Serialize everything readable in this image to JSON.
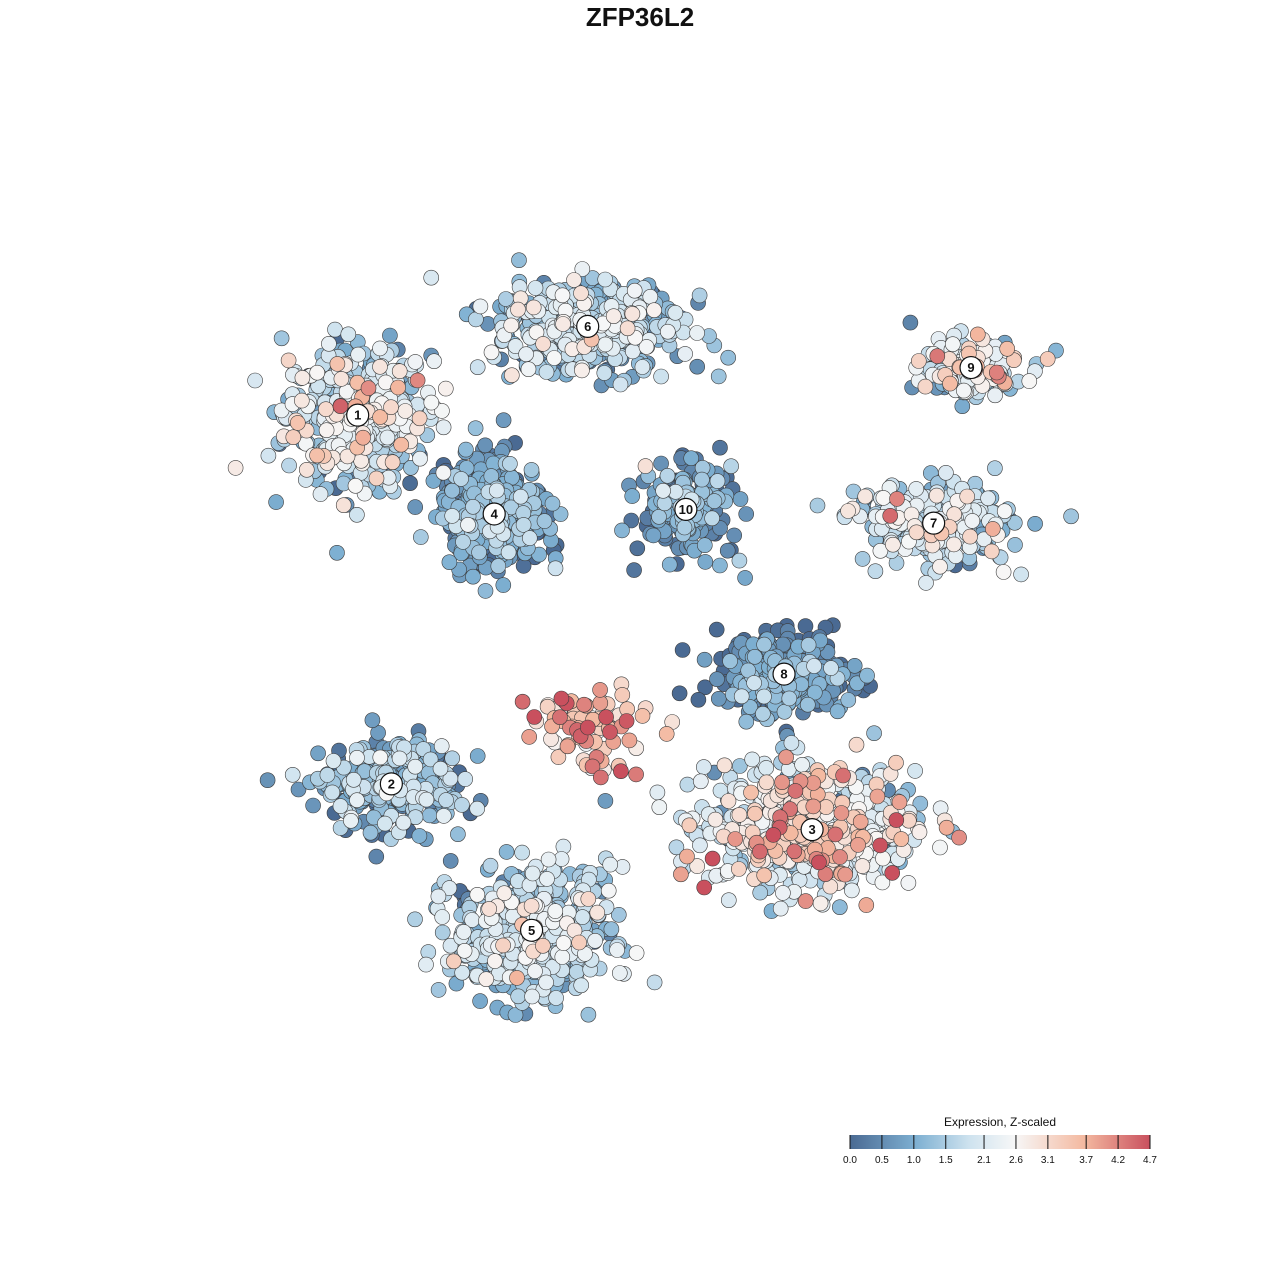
{
  "chart_data": {
    "type": "scatter",
    "title": "ZFP36L2",
    "xlabel": "",
    "ylabel": "",
    "xlim": [
      0,
      100
    ],
    "ylim": [
      0,
      100
    ],
    "grid": false,
    "legend": {
      "title": "Expression, Z-scaled",
      "placement": "bottom-right",
      "ticks": [
        "0.0",
        "0.5",
        "1.0",
        "1.5",
        "2.1",
        "2.6",
        "3.1",
        "3.7",
        "4.2",
        "4.7"
      ],
      "range": [
        0.0,
        4.7
      ]
    },
    "colorscale": [
      "#4a6a93",
      "#7eb0d2",
      "#cfe3ef",
      "#f7f7f7",
      "#f4b9a0",
      "#c9505e"
    ],
    "clusters": [
      {
        "label": "1",
        "x": 17.4,
        "y": 74.3,
        "sx": 7.0,
        "sy": 6.8,
        "n": 520,
        "mean": 1.7,
        "spread": 0.9
      },
      {
        "label": "2",
        "x": 21.0,
        "y": 34.0,
        "sx": 6.4,
        "sy": 4.6,
        "n": 320,
        "mean": 0.9,
        "spread": 0.7
      },
      {
        "label": "3",
        "x": 66.0,
        "y": 29.0,
        "sx": 10.0,
        "sy": 5.8,
        "n": 640,
        "mean": 2.3,
        "spread": 1.0
      },
      {
        "label": "4",
        "x": 32.0,
        "y": 63.5,
        "sx": 5.0,
        "sy": 5.2,
        "n": 470,
        "mean": 0.6,
        "spread": 0.6
      },
      {
        "label": "5",
        "x": 36.0,
        "y": 18.0,
        "sx": 7.5,
        "sy": 6.0,
        "n": 560,
        "mean": 1.4,
        "spread": 0.8
      },
      {
        "label": "6",
        "x": 42.0,
        "y": 84.0,
        "sx": 9.0,
        "sy": 4.6,
        "n": 480,
        "mean": 1.4,
        "spread": 0.8
      },
      {
        "label": "7",
        "x": 79.0,
        "y": 62.5,
        "sx": 7.5,
        "sy": 4.0,
        "n": 300,
        "mean": 1.6,
        "spread": 0.8
      },
      {
        "label": "8",
        "x": 63.0,
        "y": 46.0,
        "sx": 6.5,
        "sy": 4.0,
        "n": 320,
        "mean": 0.4,
        "spread": 0.6
      },
      {
        "label": "9",
        "x": 83.0,
        "y": 79.5,
        "sx": 5.0,
        "sy": 2.8,
        "n": 180,
        "mean": 1.9,
        "spread": 0.9
      },
      {
        "label": "10",
        "x": 52.5,
        "y": 64.0,
        "sx": 4.5,
        "sy": 4.5,
        "n": 220,
        "mean": 0.6,
        "spread": 0.6
      }
    ],
    "hotspot": {
      "x": 42.0,
      "y": 40.0,
      "sx": 6.0,
      "sy": 4.0,
      "n": 80,
      "mean": 3.6,
      "spread": 0.6
    }
  }
}
